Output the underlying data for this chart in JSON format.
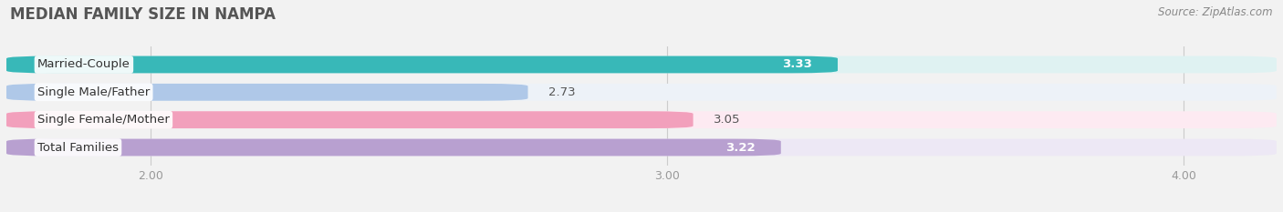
{
  "title": "MEDIAN FAMILY SIZE IN NAMPA",
  "source": "Source: ZipAtlas.com",
  "categories": [
    "Married-Couple",
    "Single Male/Father",
    "Single Female/Mother",
    "Total Families"
  ],
  "values": [
    3.33,
    2.73,
    3.05,
    3.22
  ],
  "bar_colors": [
    "#38b8b8",
    "#afc8e8",
    "#f2a0bc",
    "#b8a0d0"
  ],
  "bar_bg_colors": [
    "#dff2f2",
    "#edf2f8",
    "#fdeaf2",
    "#ede8f5"
  ],
  "xlim": [
    1.72,
    4.18
  ],
  "data_min": 1.72,
  "data_max": 4.18,
  "xticks": [
    2.0,
    3.0,
    4.0
  ],
  "xtick_labels": [
    "2.00",
    "3.00",
    "4.00"
  ],
  "bar_height": 0.62,
  "label_fontsize": 9.5,
  "value_fontsize": 9.5,
  "title_fontsize": 12,
  "source_fontsize": 8.5,
  "background_color": "#f2f2f2"
}
